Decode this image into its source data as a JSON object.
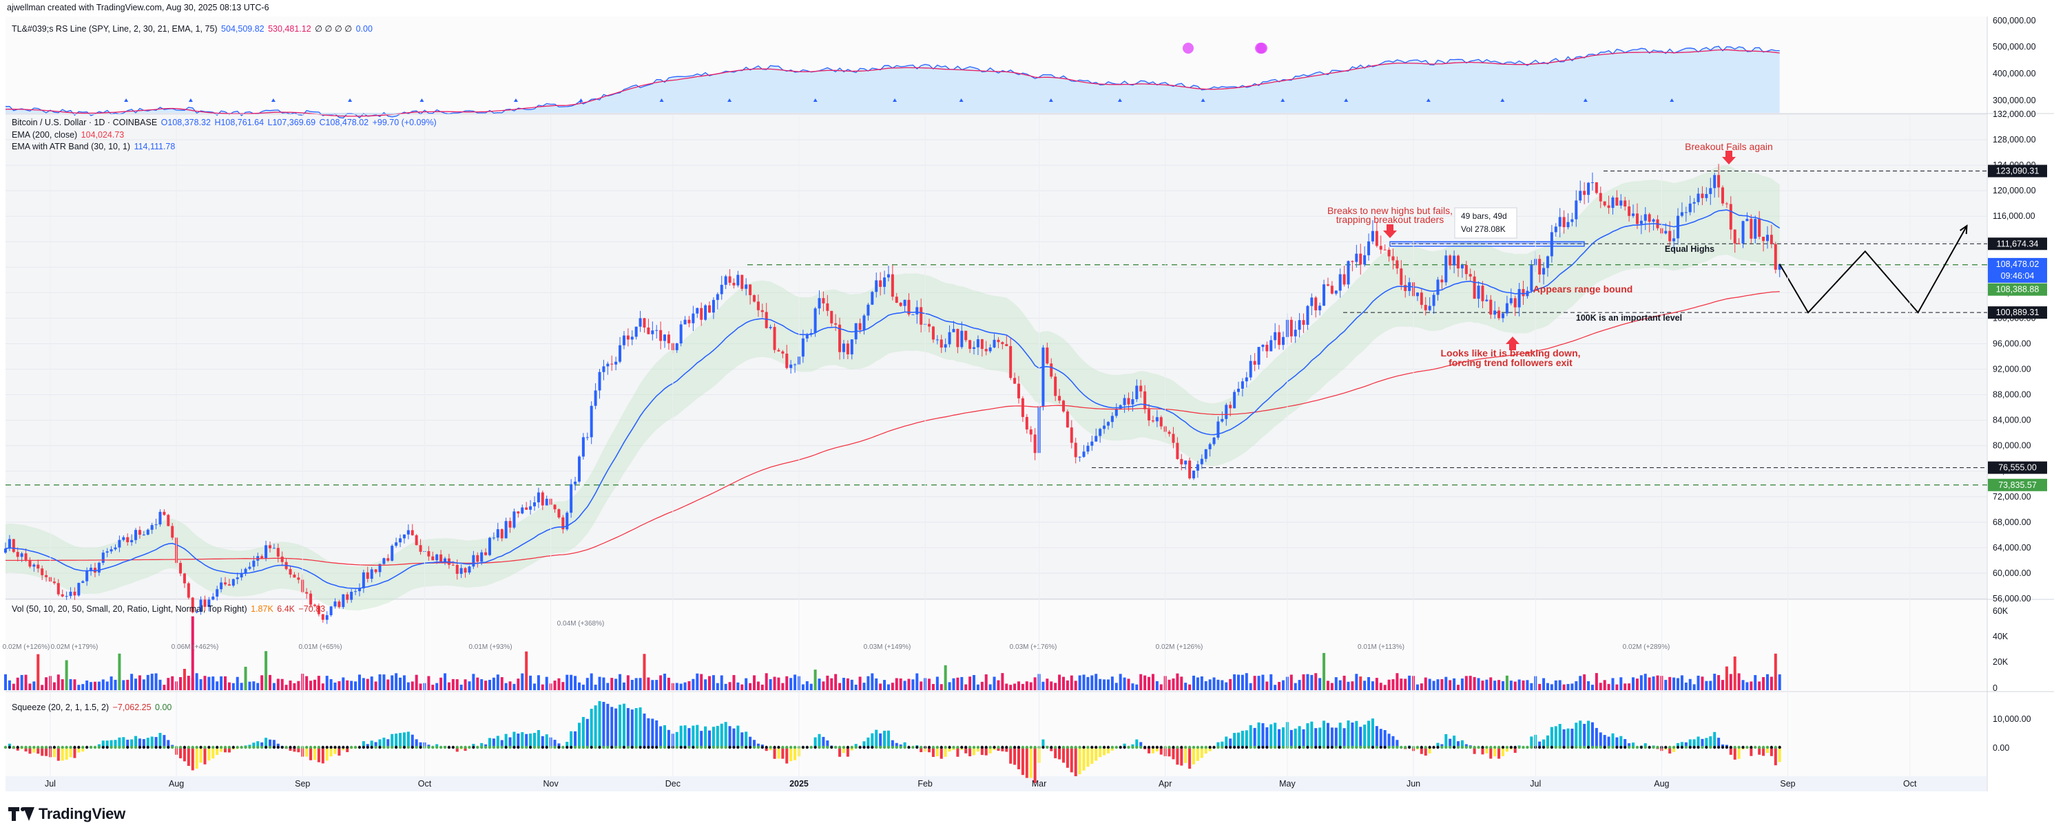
{
  "header": {
    "credit": "ajwellman created with TradingView.com, Aug 30, 2025 08:13 UTC-6"
  },
  "rs_pane": {
    "title": "TL&#039;s RS Line (SPY, Line, 2, 30, 21, EMA, 1, 75)",
    "v1": "504,509.82",
    "v2": "530,481.12",
    "symbols": "∅ ∅ ∅ ∅",
    "v3": "0.00",
    "ticks": [
      "600,000.00",
      "500,000.00",
      "400,000.00",
      "300,000.00"
    ]
  },
  "price_pane": {
    "symbol": "Bitcoin / U.S. Dollar · 1D · COINBASE",
    "open": "O108,378.32",
    "high": "H108,761.64",
    "low": "L107,369.69",
    "close": "C108,478.02",
    "change": "+99.70 (+0.09%)",
    "ema_label": "EMA (200, close)",
    "ema_value": "104,024.73",
    "atr_label": "EMA with ATR Band (30, 10, 1)",
    "atr_value": "114,111.78",
    "ticks": [
      "132,000.00",
      "128,000.00",
      "124,000.00",
      "120,000.00",
      "116,000.00",
      "112,000.00",
      "108,000.00",
      "104,000.00",
      "100,000.00",
      "96,000.00",
      "92,000.00",
      "88,000.00",
      "84,000.00",
      "80,000.00",
      "76,000.00",
      "72,000.00",
      "68,000.00",
      "64,000.00",
      "60,000.00",
      "56,000.00"
    ],
    "badges": {
      "b1": "123,090.31",
      "b2": "111,674.34",
      "b3": "108,478.02",
      "b4": "09:46:04",
      "b5": "108,388.88",
      "b6": "100,889.31",
      "b7": "76,555.00",
      "b8": "73,835.57"
    }
  },
  "annotations": {
    "breakout_fails_1": "Breaks to new highs but fails,",
    "breakout_fails_2": "trapping breakout traders",
    "measure_1": "49 bars, 49d",
    "measure_2": "Vol 278.08K",
    "breakout_again": "Breakout Fails again",
    "equal_highs": "Equal Highs",
    "range_bound": "Appears range bound",
    "important_level": "100K is an important level",
    "breaking_down_1": "Looks like it is breaking down,",
    "breaking_down_2": "forcing trend followers exit"
  },
  "vol_pane": {
    "title": "Vol (50, 10, 20, 50, Small, 20, Ratio, Light, Normal, Top Right)",
    "v1": "1.87K",
    "v2": "6.4K",
    "v3": "−70.83",
    "ticks": [
      "60K",
      "40K",
      "20K",
      "0"
    ],
    "labels": [
      "0.02M (+126%)",
      "0.02M (+179%)",
      "0.06M (+462%)",
      "0.01M (+65%)",
      "0.01M (+93%)",
      "0.04M (+368%)",
      "0.03M (+149%)",
      "0.03M (+176%)",
      "0.02M (+126%)",
      "0.01M (+113%)",
      "0.02M (+289%)"
    ]
  },
  "squeeze_pane": {
    "title": "Squeeze (20, 2, 1, 1.5, 2)",
    "v1": "−7,062.25",
    "v2": "0.00",
    "ticks": [
      "10,000.00",
      "0.00"
    ]
  },
  "time_axis": [
    "Jul",
    "Aug",
    "Sep",
    "Oct",
    "Nov",
    "Dec",
    "2025",
    "Feb",
    "Mar",
    "Apr",
    "May",
    "Jun",
    "Jul",
    "Aug",
    "Sep",
    "Oct"
  ],
  "footer": {
    "brand": "TradingView"
  },
  "colors": {
    "up": "#2962ff",
    "down": "#f23645",
    "ema200": "#f23645",
    "ema30": "#2962ff",
    "band": "#c8e6c9",
    "green_line": "#2e7d32",
    "badge_dark": "#131722",
    "badge_blue": "#2962ff",
    "badge_green": "#43a047"
  },
  "chart_data": {
    "type": "candlestick",
    "title": "Bitcoin / U.S. Dollar · 1D · COINBASE",
    "ylim": [
      56000,
      132000
    ],
    "x_range": [
      "2024-06-20",
      "2025-10-20"
    ],
    "key_levels": [
      123090.31,
      111674.34,
      108478.02,
      108388.88,
      100889.31,
      76555.0,
      73835.57
    ],
    "close_path": [
      {
        "date": "2024-06-20",
        "close": 65000
      },
      {
        "date": "2024-07-05",
        "close": 56000
      },
      {
        "date": "2024-07-15",
        "close": 63000
      },
      {
        "date": "2024-07-29",
        "close": 69000
      },
      {
        "date": "2024-08-05",
        "close": 54000
      },
      {
        "date": "2024-08-24",
        "close": 64000
      },
      {
        "date": "2024-09-06",
        "close": 53000
      },
      {
        "date": "2024-09-27",
        "close": 65800
      },
      {
        "date": "2024-10-10",
        "close": 60000
      },
      {
        "date": "2024-10-29",
        "close": 72500
      },
      {
        "date": "2024-11-04",
        "close": 68000
      },
      {
        "date": "2024-11-13",
        "close": 90000
      },
      {
        "date": "2024-11-22",
        "close": 99000
      },
      {
        "date": "2024-12-01",
        "close": 96000
      },
      {
        "date": "2024-12-17",
        "close": 107000
      },
      {
        "date": "2024-12-30",
        "close": 92000
      },
      {
        "date": "2025-01-06",
        "close": 102000
      },
      {
        "date": "2025-01-13",
        "close": 94000
      },
      {
        "date": "2025-01-20",
        "close": 107500
      },
      {
        "date": "2025-02-03",
        "close": 97000
      },
      {
        "date": "2025-02-20",
        "close": 96000
      },
      {
        "date": "2025-02-28",
        "close": 80000
      },
      {
        "date": "2025-03-02",
        "close": 94000
      },
      {
        "date": "2025-03-10",
        "close": 78000
      },
      {
        "date": "2025-03-25",
        "close": 88000
      },
      {
        "date": "2025-04-08",
        "close": 75000
      },
      {
        "date": "2025-04-22",
        "close": 93000
      },
      {
        "date": "2025-05-09",
        "close": 103000
      },
      {
        "date": "2025-05-22",
        "close": 111900
      },
      {
        "date": "2025-06-05",
        "close": 101500
      },
      {
        "date": "2025-06-10",
        "close": 110000
      },
      {
        "date": "2025-06-22",
        "close": 99000
      },
      {
        "date": "2025-07-03",
        "close": 109500
      },
      {
        "date": "2025-07-14",
        "close": 122000
      },
      {
        "date": "2025-07-24",
        "close": 116000
      },
      {
        "date": "2025-08-02",
        "close": 112500
      },
      {
        "date": "2025-08-14",
        "close": 123090
      },
      {
        "date": "2025-08-19",
        "close": 113500
      },
      {
        "date": "2025-08-24",
        "close": 114500
      },
      {
        "date": "2025-08-30",
        "close": 108478
      }
    ],
    "projection": [
      {
        "date": "2025-08-30",
        "price": 108478
      },
      {
        "date": "2025-09-06",
        "price": 100889
      },
      {
        "date": "2025-09-20",
        "price": 110500
      },
      {
        "date": "2025-10-03",
        "price": 100889
      },
      {
        "date": "2025-10-15",
        "price": 114500
      }
    ]
  }
}
